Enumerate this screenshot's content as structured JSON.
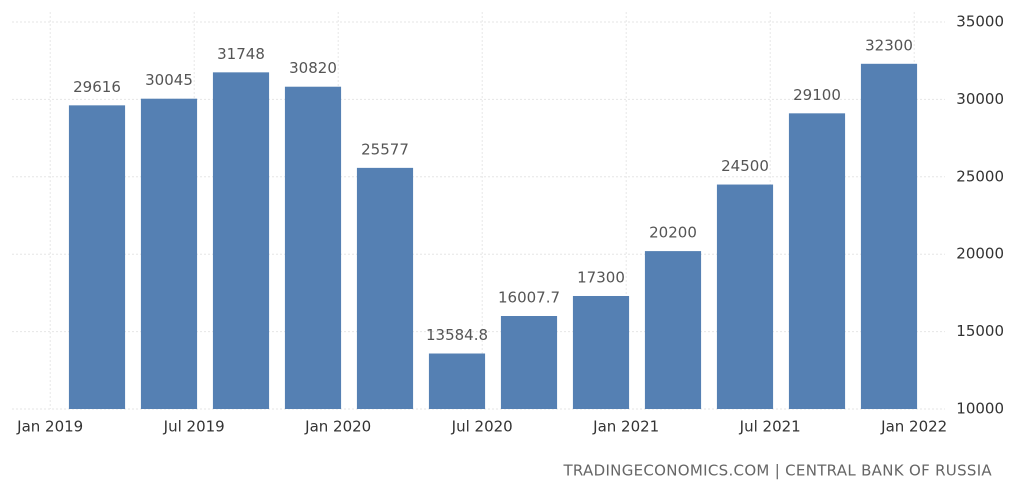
{
  "chart_data": {
    "type": "bar",
    "categories": [
      null,
      null,
      null,
      null,
      null,
      null,
      null,
      null,
      null,
      null,
      null,
      null
    ],
    "values": [
      29616,
      30045,
      31748,
      30820,
      25577,
      13584.8,
      16007.7,
      17300,
      20200,
      24500,
      29100,
      32300
    ],
    "x_labels": [
      "Jan 2019",
      "Jul 2019",
      "Jan 2020",
      "Jul 2020",
      "Jan 2021",
      "Jul 2021",
      "Jan 2022"
    ],
    "color": "#5580b3",
    "ylim": [
      10000,
      35000
    ],
    "yticks": [
      10000,
      15000,
      20000,
      25000,
      30000,
      35000
    ],
    "grid": true,
    "source": "TRADINGECONOMICS.COM | CENTRAL BANK OF RUSSIA"
  }
}
